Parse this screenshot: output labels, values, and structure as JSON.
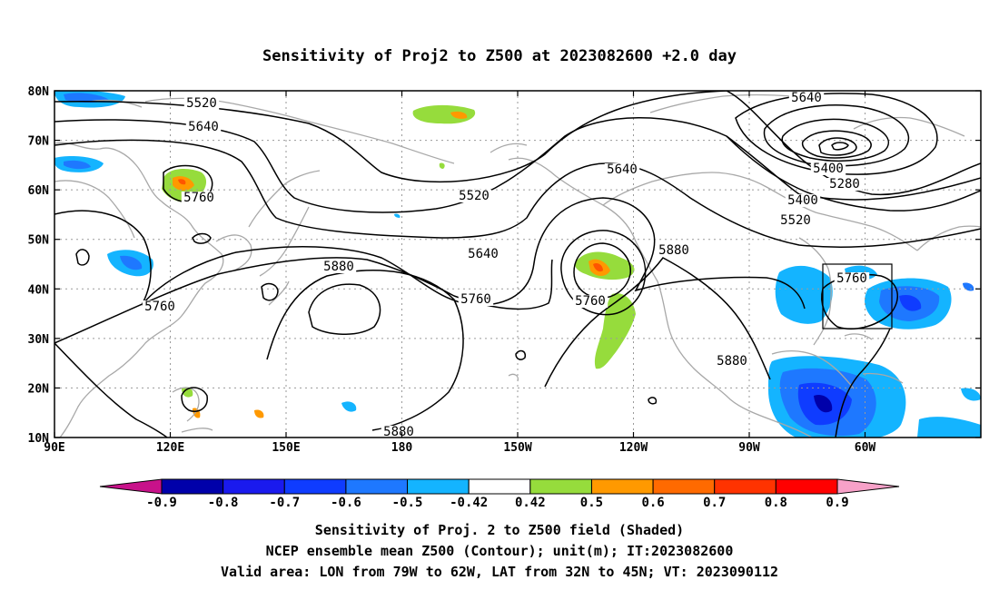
{
  "title": "Sensitivity of Proj2 to Z500 at 2023082600 +2.0 day",
  "map": {
    "lon_labels": [
      "90E",
      "120E",
      "150E",
      "180",
      "150W",
      "120W",
      "90W",
      "60W"
    ],
    "lat_labels": [
      "80N",
      "70N",
      "60N",
      "50N",
      "40N",
      "30N",
      "20N",
      "10N"
    ],
    "lon_range": [
      90,
      330
    ],
    "lat_range": [
      10,
      80
    ],
    "contour_labels": [
      "5520",
      "5640",
      "5760",
      "5520",
      "5640",
      "5760",
      "5880",
      "5760",
      "5880",
      "5760",
      "5640",
      "5400",
      "5280",
      "5400",
      "5520",
      "5640",
      "5760",
      "5880",
      "5880"
    ],
    "valid_box": {
      "lon": [
        "79W",
        "62W"
      ],
      "lat": [
        "32N",
        "45N"
      ]
    }
  },
  "colorbar": {
    "labels": [
      "-0.9",
      "-0.8",
      "-0.7",
      "-0.6",
      "-0.5",
      "-0.42",
      "0.42",
      "0.5",
      "0.6",
      "0.7",
      "0.8",
      "0.9"
    ],
    "colors": [
      "#0000aa",
      "#1a1aee",
      "#0f3cff",
      "#1e78ff",
      "#14b4ff",
      "#ffffff",
      "#96dc3c",
      "#ff9900",
      "#ff6a00",
      "#ff3300",
      "#ff0000"
    ],
    "left_arrow_color": "#c8128a",
    "right_arrow_color": "#f7a1c8"
  },
  "footer": [
    "Sensitivity of Proj. 2 to Z500 field (Shaded)",
    "NCEP ensemble mean Z500 (Contour); unit(m); IT:2023082600",
    "Valid area: LON from 79W to 62W, LAT from 32N to 45N; VT: 2023090112"
  ]
}
